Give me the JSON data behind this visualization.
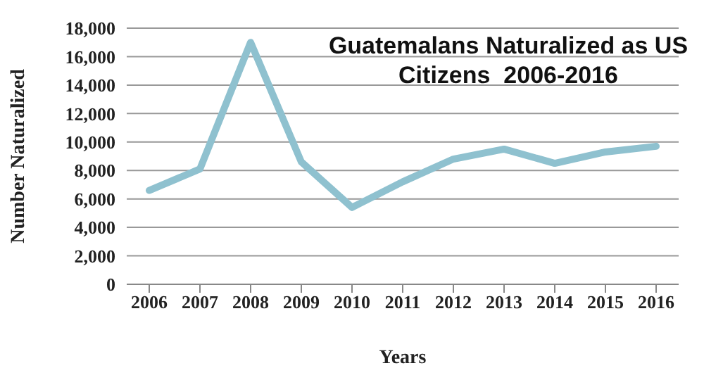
{
  "chart_data": {
    "type": "line",
    "title": "Guatemalans Naturalized as US Citizens  2006-2016",
    "xlabel": "Years",
    "ylabel": "Number Naturalized",
    "categories": [
      "2006",
      "2007",
      "2008",
      "2009",
      "2010",
      "2011",
      "2012",
      "2013",
      "2014",
      "2015",
      "2016"
    ],
    "series": [
      {
        "color": "#8fc1cf",
        "values": [
          6600,
          8100,
          17000,
          8600,
          5400,
          7200,
          8800,
          9500,
          8500,
          9300,
          9700
        ]
      }
    ],
    "ylim": [
      0,
      18000
    ],
    "yticks": [
      {
        "value": 0,
        "label": "0"
      },
      {
        "value": 2000,
        "label": "2,000"
      },
      {
        "value": 4000,
        "label": "4,000"
      },
      {
        "value": 6000,
        "label": "6,000"
      },
      {
        "value": 8000,
        "label": "8,000"
      },
      {
        "value": 10000,
        "label": "10,000"
      },
      {
        "value": 12000,
        "label": "12,000"
      },
      {
        "value": 14000,
        "label": "14,000"
      },
      {
        "value": 16000,
        "label": "16,000"
      },
      {
        "value": 18000,
        "label": "18,000"
      }
    ],
    "grid": "y",
    "legend": false,
    "marker": "none",
    "line_style": "solid"
  }
}
